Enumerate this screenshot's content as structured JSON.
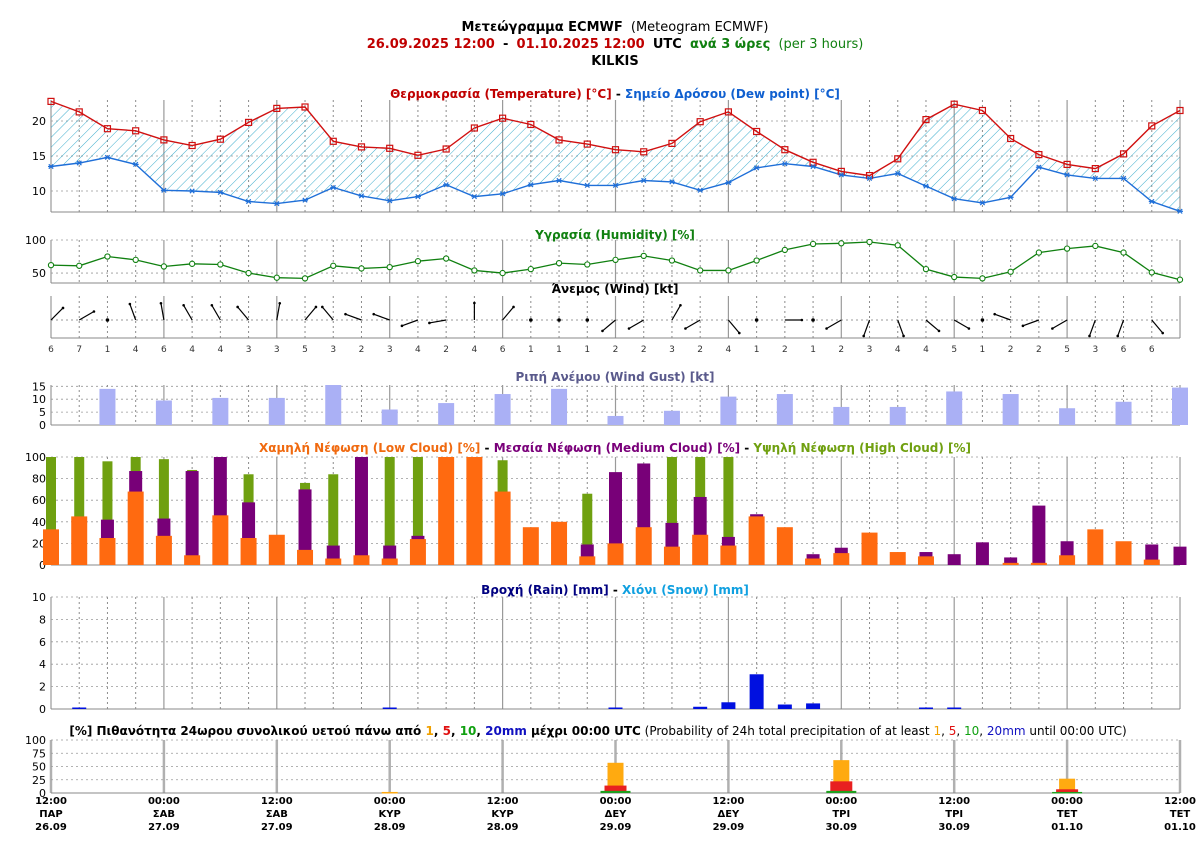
{
  "header": {
    "line1_bold": "Μετεώγραμμα ECMWF",
    "line1_rest": "(Meteogram ECMWF)",
    "start": "26.09.2025 12:00",
    "dash": "-",
    "end": "01.10.2025 12:00",
    "utc": "UTC",
    "step_bold": "ανά 3 ώρες",
    "step_rest": "(per 3 hours)",
    "location": "KILKIS",
    "colors": {
      "main": "#000000",
      "date": "#c00000",
      "step": "#108010"
    }
  },
  "chart_data": [
    {
      "type": "line",
      "panel": "temperature",
      "title_parts": [
        {
          "text": "Θερμοκρασία (Temperature) [°C]",
          "color": "#c00000"
        },
        {
          "text": " - ",
          "color": "#000000"
        },
        {
          "text": "Σημείο Δρόσου (Dew point) [°C]",
          "color": "#1060d0"
        }
      ],
      "yticks": [
        10,
        15,
        20
      ],
      "ylim": [
        7,
        23
      ],
      "series": [
        {
          "name": "Θερμοκρασία (Temperature) [°C]",
          "color": "#d01010",
          "values": [
            22.8,
            21.3,
            18.9,
            18.6,
            17.3,
            16.5,
            17.4,
            19.8,
            21.8,
            22.0,
            17.1,
            16.3,
            16.1,
            15.1,
            16.0,
            19.0,
            20.4,
            19.5,
            17.3,
            16.7,
            15.9,
            15.6,
            16.8,
            19.9,
            21.3,
            18.5,
            15.9,
            14.1,
            12.8,
            12.2,
            14.6,
            20.2,
            22.4,
            21.5,
            17.5,
            15.2,
            13.8,
            13.2,
            15.3,
            19.3,
            21.5
          ]
        },
        {
          "name": "Σημείο Δρόσου (Dew point) [°C]",
          "color": "#1f6fd8",
          "values": [
            13.5,
            14.0,
            14.8,
            13.8,
            10.1,
            10.0,
            9.8,
            8.5,
            8.2,
            8.7,
            10.5,
            9.3,
            8.6,
            9.2,
            10.9,
            9.2,
            9.6,
            10.9,
            11.5,
            10.8,
            10.8,
            11.5,
            11.3,
            10.1,
            11.2,
            13.3,
            13.9,
            13.5,
            12.3,
            11.8,
            12.5,
            10.7,
            8.9,
            8.3,
            9.1,
            13.4,
            12.3,
            11.8,
            11.8,
            8.5,
            7.1
          ]
        }
      ]
    },
    {
      "type": "line",
      "panel": "humidity",
      "title_parts": [
        {
          "text": "Υγρασία (Humidity) [%]",
          "color": "#108010"
        }
      ],
      "yticks": [
        50,
        100
      ],
      "ylim": [
        35,
        100
      ],
      "series": [
        {
          "name": "Υγρασία (Humidity) [%]",
          "color": "#108010",
          "values": [
            62,
            61,
            75,
            70,
            60,
            64,
            63,
            50,
            43,
            42,
            61,
            57,
            59,
            68,
            72,
            54,
            50,
            56,
            65,
            63,
            70,
            76,
            69,
            54,
            54,
            69,
            85,
            94,
            95,
            97,
            92,
            56,
            44,
            42,
            52,
            81,
            87,
            91,
            81,
            51,
            40
          ]
        }
      ]
    },
    {
      "type": "wind",
      "panel": "wind",
      "title_parts": [
        {
          "text": "Άνεμος (Wind) [kt]",
          "color": "#000000"
        }
      ],
      "speeds": [
        6,
        7,
        1,
        4,
        6,
        4,
        4,
        3,
        3,
        5,
        3,
        2,
        3,
        4,
        2,
        4,
        6,
        1,
        1,
        1,
        2,
        2,
        3,
        2,
        4,
        1,
        2,
        1,
        2,
        3,
        4,
        4,
        5,
        1,
        2,
        2,
        5,
        3,
        6,
        6
      ],
      "directions": [
        45,
        60,
        340,
        340,
        350,
        330,
        330,
        320,
        10,
        40,
        320,
        290,
        290,
        250,
        260,
        360,
        40,
        300,
        270,
        300,
        230,
        240,
        30,
        240,
        140,
        100,
        90,
        240,
        240,
        200,
        160,
        130,
        120,
        340,
        290,
        250,
        240,
        200,
        200,
        140
      ],
      "direction_axis": "-",
      "line_color": "#000000"
    },
    {
      "type": "bar",
      "panel": "gust",
      "title_parts": [
        {
          "text": "Ριπή Ανέμου (Wind Gust) [kt]",
          "color": "#5a5a8c"
        }
      ],
      "yticks": [
        0,
        5,
        10,
        15
      ],
      "ylim": [
        0,
        15.5
      ],
      "series": [
        {
          "name": "Ριπή Ανέμου (Wind Gust) [kt]",
          "color": "#aab0f5",
          "values": [
            14,
            9.5,
            10.5,
            10.5,
            15.5,
            6,
            8.5,
            12,
            14,
            3.5,
            5.5,
            11,
            12,
            7,
            7,
            13,
            12,
            6.5,
            9,
            14.5
          ]
        }
      ]
    },
    {
      "type": "bar",
      "panel": "cloud",
      "title_parts": [
        {
          "text": "Χαμηλή Νέφωση (Low Cloud) [%]",
          "color": "#f06a10"
        },
        {
          "text": " - ",
          "color": "#000000"
        },
        {
          "text": "Μεσαία Νέφωση (Medium Cloud) [%]",
          "color": "#7a007a"
        },
        {
          "text": " - ",
          "color": "#000000"
        },
        {
          "text": "Υψηλή Νέφωση (High Cloud) [%]",
          "color": "#70a010"
        }
      ],
      "yticks": [
        0,
        20,
        40,
        60,
        80,
        100
      ],
      "ylim": [
        0,
        100
      ],
      "series": [
        {
          "name": "Υψηλή Νέφωση (High Cloud) [%]",
          "color": "#6fa010",
          "values": [
            100,
            100,
            96,
            100,
            98,
            88,
            0,
            84,
            0,
            76,
            84,
            0,
            100,
            100,
            0,
            0,
            97,
            0,
            0,
            66,
            62,
            0,
            100,
            100,
            100,
            0,
            0,
            0,
            0,
            0,
            0,
            0,
            0,
            0,
            0,
            0,
            0,
            0,
            0,
            0,
            0
          ]
        },
        {
          "name": "Μεσαία Νέφωση (Medium Cloud) [%]",
          "color": "#780078",
          "values": [
            0,
            0,
            42,
            87,
            43,
            87,
            100,
            58,
            0,
            70,
            18,
            100,
            18,
            27,
            0,
            0,
            0,
            0,
            0,
            19,
            86,
            94,
            39,
            63,
            26,
            47,
            0,
            10,
            16,
            0,
            0,
            12,
            10,
            21,
            7,
            55,
            22,
            0,
            0,
            19,
            17
          ]
        },
        {
          "name": "Χαμηλή Νέφωση (Low Cloud) [%]",
          "color": "#ff6a10",
          "values": [
            33,
            45,
            25,
            68,
            27,
            9,
            46,
            25,
            28,
            14,
            6,
            9,
            6,
            24,
            100,
            100,
            68,
            35,
            40,
            8,
            20,
            35,
            17,
            28,
            18,
            45,
            35,
            6,
            11,
            30,
            12,
            8,
            0,
            0,
            2,
            2,
            9,
            33,
            22,
            5,
            0
          ]
        }
      ]
    },
    {
      "type": "bar",
      "panel": "rain",
      "title_parts": [
        {
          "text": "Βροχή (Rain) [mm]",
          "color": "#000080"
        },
        {
          "text": " - ",
          "color": "#000000"
        },
        {
          "text": "Χιόνι (Snow) [mm]",
          "color": "#10a0e0"
        }
      ],
      "yticks": [
        0,
        2,
        4,
        6,
        8,
        10
      ],
      "ylim": [
        0,
        10
      ],
      "series": [
        {
          "name": "Βροχή (Rain) [mm]",
          "color": "#0010e0",
          "values": [
            0,
            0.1,
            0,
            0,
            0,
            0,
            0,
            0,
            0,
            0,
            0,
            0,
            0.1,
            0,
            0,
            0,
            0,
            0,
            0,
            0,
            0.1,
            0,
            0,
            0.2,
            0.6,
            3.1,
            0.4,
            0.5,
            0,
            0,
            0,
            0.1,
            0.1,
            0,
            0,
            0,
            0,
            0,
            0,
            0,
            0
          ]
        }
      ]
    },
    {
      "type": "bar",
      "panel": "probability",
      "title_parts": [
        {
          "text": "[%] Πιθανότητα 24ωρου συνολικού υετού πάνω από ",
          "color": "#000000",
          "bold": true
        },
        {
          "text": "1",
          "color": "#f0a000",
          "bold": true
        },
        {
          "text": ", ",
          "color": "#000000",
          "bold": true
        },
        {
          "text": "5",
          "color": "#e01010",
          "bold": true
        },
        {
          "text": ", ",
          "color": "#000000",
          "bold": true
        },
        {
          "text": "10",
          "color": "#10a010",
          "bold": true
        },
        {
          "text": ", ",
          "color": "#000000",
          "bold": true
        },
        {
          "text": "20mm",
          "color": "#1010c0",
          "bold": true
        },
        {
          "text": " μέχρι 00:00 UTC",
          "color": "#000000",
          "bold": true
        },
        {
          "text": " (Probability of 24h total precipitation of at least ",
          "color": "#000000"
        },
        {
          "text": "1",
          "color": "#f0a000"
        },
        {
          "text": ", ",
          "color": "#000000"
        },
        {
          "text": "5",
          "color": "#e01010"
        },
        {
          "text": ", ",
          "color": "#000000"
        },
        {
          "text": "10",
          "color": "#10a010"
        },
        {
          "text": ", ",
          "color": "#000000"
        },
        {
          "text": "20mm",
          "color": "#1010c0"
        },
        {
          "text": " until 00:00 UTC)",
          "color": "#000000"
        }
      ],
      "yticks": [
        0,
        25,
        50,
        75,
        100
      ],
      "ylim": [
        0,
        100
      ],
      "categories": [
        "28.09 00:00",
        "29.09 00:00",
        "30.09 00:00",
        "01.10 00:00"
      ],
      "series": [
        {
          "name": "1",
          "color": "#ffaa10",
          "values": [
            2,
            57,
            62,
            27
          ]
        },
        {
          "name": "5",
          "color": "#e82020",
          "values": [
            0,
            14,
            22,
            7
          ]
        },
        {
          "name": "10",
          "color": "#20a020",
          "values": [
            0,
            4,
            4,
            2
          ]
        },
        {
          "name": "20mm",
          "color": "#1010c0",
          "values": [
            0,
            0,
            0,
            0
          ]
        }
      ]
    }
  ],
  "xaxis": {
    "time_labels": [
      "12:00",
      "00:00",
      "12:00",
      "00:00",
      "12:00",
      "00:00",
      "12:00",
      "00:00",
      "12:00",
      "00:00",
      "12:00"
    ],
    "day_labels": [
      "ΠΑΡ",
      "ΣΑΒ",
      "ΣΑΒ",
      "ΚΥΡ",
      "ΚΥΡ",
      "ΔΕΥ",
      "ΔΕΥ",
      "ΤΡΙ",
      "ΤΡΙ",
      "ΤΕΤ",
      "ΤΕΤ"
    ],
    "date_labels": [
      "26.09",
      "27.09",
      "27.09",
      "28.09",
      "28.09",
      "29.09",
      "29.09",
      "30.09",
      "30.09",
      "01.10",
      "01.10"
    ]
  }
}
